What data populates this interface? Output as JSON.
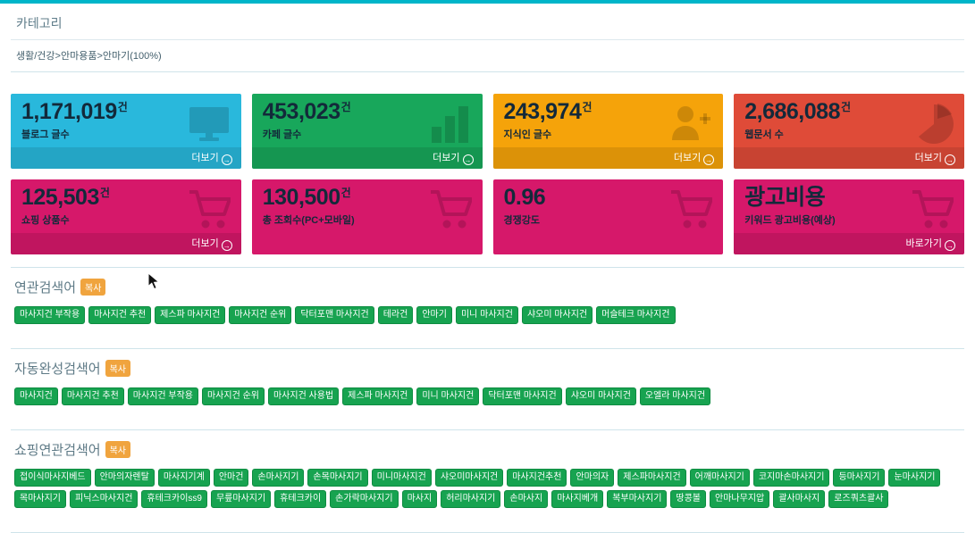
{
  "category": {
    "title": "카테고리",
    "breadcrumb": "생활/건강>안마용품>안마기(100%)"
  },
  "stat_cards": [
    {
      "id": "blog",
      "value": "1,171,019",
      "unit": "건",
      "label": "블로그 글수",
      "footer": "더보기",
      "color": "#29b8dc",
      "icon": "monitor-icon"
    },
    {
      "id": "cafe",
      "value": "453,023",
      "unit": "건",
      "label": "카페 글수",
      "footer": "더보기",
      "color": "#18a75b",
      "icon": "bar-chart-icon"
    },
    {
      "id": "kin",
      "value": "243,974",
      "unit": "건",
      "label": "지식인 글수",
      "footer": "더보기",
      "color": "#f5a30a",
      "icon": "person-add-icon"
    },
    {
      "id": "webdoc",
      "value": "2,686,088",
      "unit": "건",
      "label": "웹문서 수",
      "footer": "더보기",
      "color": "#df4b38",
      "icon": "pie-chart-icon"
    },
    {
      "id": "shopping",
      "value": "125,503",
      "unit": "건",
      "label": "쇼핑 상품수",
      "footer": "더보기",
      "color": "#d6186a",
      "icon": "cart-icon"
    },
    {
      "id": "total-views",
      "value": "130,500",
      "unit": "건",
      "label": "총 조회수(PC+모바일)",
      "footer": "",
      "color": "#d6186a",
      "icon": "cart-icon"
    },
    {
      "id": "competition",
      "value": "0.96",
      "unit": "",
      "label": "경쟁강도",
      "footer": "",
      "color": "#d6186a",
      "icon": "cart-icon"
    },
    {
      "id": "ad-cost",
      "value": "광고비용",
      "unit": "",
      "label": "키워드 광고비용(예상)",
      "footer": "바로가기",
      "color": "#d6186a",
      "icon": "cart-icon"
    }
  ],
  "sections": [
    {
      "id": "related",
      "title": "연관검색어",
      "copy_label": "복사",
      "tags": [
        "마사지건 부작용",
        "마사지건 추천",
        "제스파 마사지건",
        "마사지건 순위",
        "닥터포맨 마사지건",
        "테라건",
        "안마기",
        "미니 마사지건",
        "샤오미 마사지건",
        "머슬테크 마사지건"
      ]
    },
    {
      "id": "autocomplete",
      "title": "자동완성검색어",
      "copy_label": "복사",
      "tags": [
        "마사지건",
        "마사지건 추천",
        "마사지건 부작용",
        "마사지건 순위",
        "마사지건 사용법",
        "제스파 마사지건",
        "미니 마사지건",
        "닥터포맨 마사지건",
        "샤오미 마사지건",
        "오엘라 마사지건"
      ]
    },
    {
      "id": "shopping-related",
      "title": "쇼핑연관검색어",
      "copy_label": "복사",
      "tags": [
        "접이식마사지베드",
        "안마의자렌탈",
        "마사지기계",
        "안마건",
        "손마사지기",
        "손목마사지기",
        "미니마사지건",
        "샤오미마사지건",
        "마사지건추천",
        "안마의자",
        "제스파마사지건",
        "어깨마사지기",
        "코지마손마사지기",
        "등마사지기",
        "눈마사지기",
        "목마사지기",
        "피닉스마사지건",
        "휴테크카이ss9",
        "무릎마사지기",
        "휴테크카이",
        "손가락마사지기",
        "마사지",
        "허리마사지기",
        "손마사지",
        "마사지베개",
        "복부마사지기",
        "땅콩볼",
        "안마나무지압",
        "괄사마사지",
        "로즈쿼츠괄사"
      ]
    }
  ]
}
